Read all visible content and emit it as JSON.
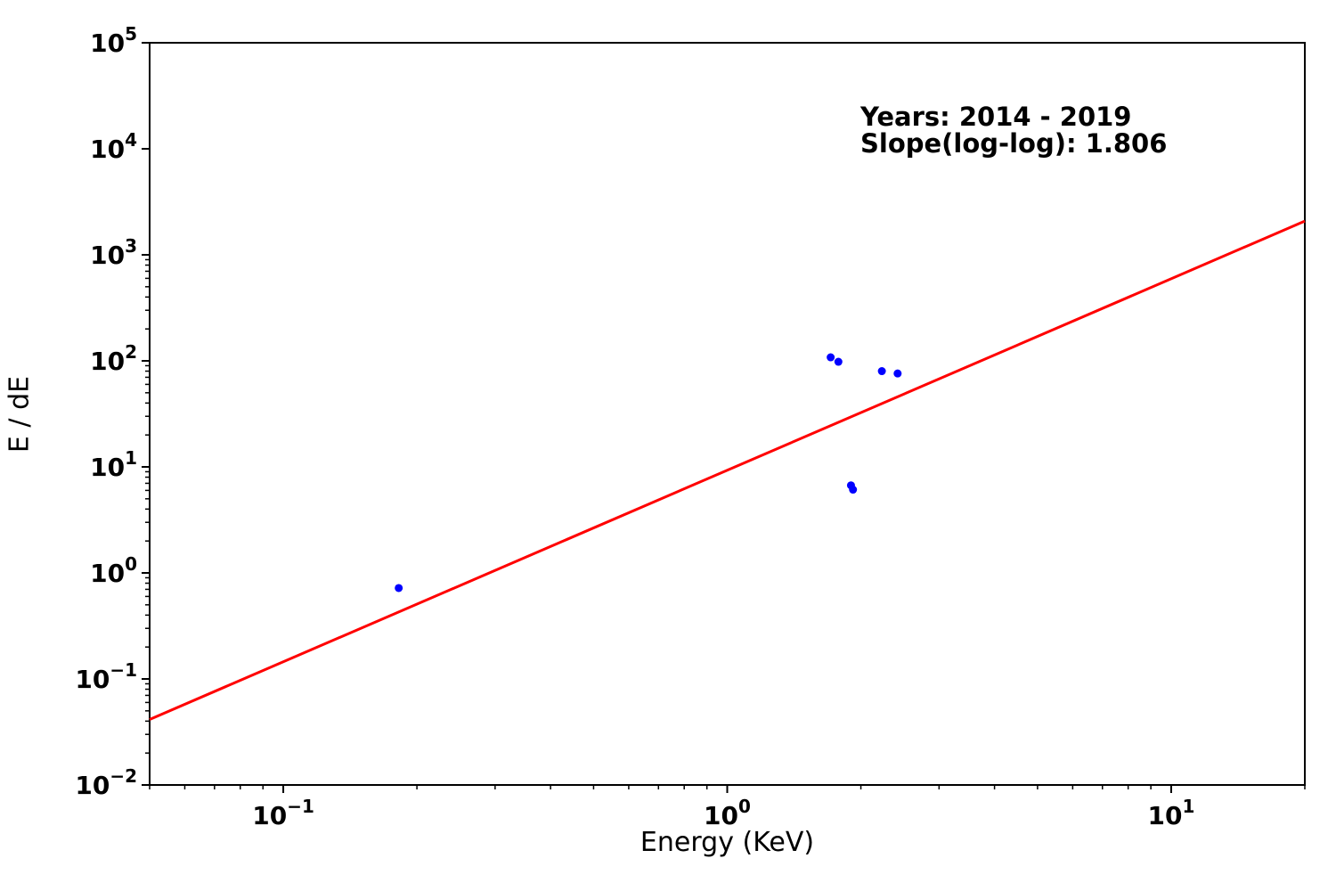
{
  "chart_data": {
    "type": "scatter",
    "title": "",
    "xlabel": "Energy (KeV)",
    "ylabel": "E / dE",
    "xscale": "log",
    "yscale": "log",
    "xlim": [
      0.05,
      20
    ],
    "ylim": [
      0.01,
      100000
    ],
    "x_major_tick_exponents": [
      -1,
      0,
      1
    ],
    "y_major_tick_exponents": [
      -2,
      -1,
      0,
      1,
      2,
      3,
      4,
      5
    ],
    "grid": false,
    "legend": "none",
    "points": [
      {
        "x": 1.71,
        "y": 108
      },
      {
        "x": 1.78,
        "y": 98
      },
      {
        "x": 2.23,
        "y": 80
      },
      {
        "x": 2.42,
        "y": 76
      },
      {
        "x": 1.9,
        "y": 6.7
      },
      {
        "x": 1.92,
        "y": 6.1
      },
      {
        "x": 0.182,
        "y": 0.72
      }
    ],
    "fit_line": {
      "x": [
        0.05,
        20
      ],
      "y": [
        0.0415,
        2080
      ],
      "slope_loglog": 1.806
    },
    "annotation": {
      "line1": "Years: 2014 - 2019",
      "line2": "Slope(log-log): 1.806"
    },
    "colors": {
      "points": "#0000ff",
      "fit_line": "#ff0000",
      "text": "#000000",
      "axes": "#000000",
      "background": "#ffffff"
    }
  }
}
